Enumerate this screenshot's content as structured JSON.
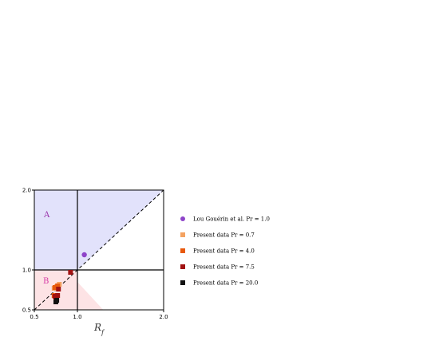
{
  "chart_data": {
    "type": "scatter",
    "title": "",
    "xlabel": "R_f",
    "ylabel": "",
    "xlim": [
      0.5,
      2.0
    ],
    "ylim": [
      0.5,
      2.0
    ],
    "x_ticks": [
      "0.5",
      "1.0",
      "2.0"
    ],
    "y_ticks": [
      "0.5",
      "1.0",
      "2.0"
    ],
    "x_tick_values": [
      0.5,
      1.0,
      2.0
    ],
    "y_tick_values": [
      0.5,
      1.0,
      2.0
    ],
    "region_labels": [
      {
        "text": "A",
        "color": "#9933aa"
      },
      {
        "text": "B",
        "color": "#d63aa6"
      }
    ],
    "region_colors": {
      "A": "#e2e2fb",
      "B": "#fde3e5"
    },
    "legend_position": "right",
    "series": [
      {
        "name": "Lou Gouérin et al. Pr = 1.0",
        "marker": "circle",
        "color": "#8e44c9",
        "points": [
          [
            1.08,
            1.19
          ]
        ]
      },
      {
        "name": "Present data Pr = 0.7",
        "marker": "square",
        "color": "#f4a261",
        "points": [
          [
            0.73,
            0.77
          ],
          [
            0.76,
            0.79
          ],
          [
            0.79,
            0.82
          ]
        ]
      },
      {
        "name": "Present data Pr = 4.0",
        "marker": "square",
        "color": "#e8590c",
        "points": [
          [
            0.74,
            0.78
          ],
          [
            0.77,
            0.8
          ],
          [
            0.73,
            0.68
          ]
        ]
      },
      {
        "name": "Present data Pr = 7.5",
        "marker": "square",
        "color": "#a11212",
        "points": [
          [
            0.92,
            0.97
          ],
          [
            0.78,
            0.76
          ],
          [
            0.74,
            0.67
          ],
          [
            0.77,
            0.68
          ],
          [
            0.75,
            0.65
          ]
        ]
      },
      {
        "name": "Present data Pr = 20.0",
        "marker": "square",
        "color": "#111111",
        "points": [
          [
            0.75,
            0.6
          ],
          [
            0.76,
            0.62
          ]
        ]
      }
    ]
  }
}
